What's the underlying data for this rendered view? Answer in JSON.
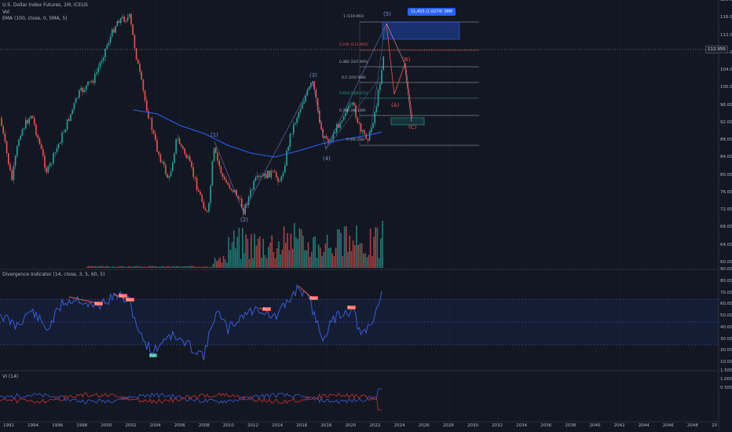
{
  "legend": {
    "title": "U.S. Dollar Index Futures, 1M, ICEUS",
    "volume": "Vol",
    "ema": "EMA (100, close, 0, SMA, 5)",
    "divergence": "Divergence Indicator (14, close, 3, 5, 60, 5)",
    "vi": "VI (14)"
  },
  "colors": {
    "background": "#131722",
    "up": "#26a69a",
    "down": "#ef5350",
    "ema": "#2962ff",
    "indicator": "#3b5bdb",
    "vi_minus": "#d32f2f",
    "grid": "#1e222d"
  },
  "price_axis": [
    "120.000",
    "116.000",
    "112.000",
    "108.000",
    "104.000",
    "100.000",
    "96.000",
    "92.000",
    "88.000",
    "84.000",
    "80.000",
    "76.000",
    "72.000",
    "68.000",
    "64.000",
    "60.000"
  ],
  "current_price": "112.950",
  "osc_axis": [
    "90.00",
    "80.00",
    "70.00",
    "60.00",
    "50.00",
    "40.00",
    "30.00",
    "20.00",
    "10.00"
  ],
  "vi_axis": [
    "1.5000",
    "1.0000",
    "0.5000"
  ],
  "time_axis": [
    "1992",
    "1994",
    "1996",
    "1998",
    "2000",
    "2002",
    "2004",
    "2006",
    "2008",
    "2010",
    "2012",
    "2014",
    "2016",
    "2018",
    "2020",
    "2022",
    "2024",
    "2026",
    "2028",
    "2030",
    "2032",
    "2034",
    "2036",
    "2038",
    "2040",
    "2042",
    "2044",
    "2046",
    "2048",
    "20"
  ],
  "fib_levels": [
    {
      "label": "1 (119.093)",
      "color": "#b2b5be"
    },
    {
      "label": "0.236 (111.905)",
      "color": "#ef5350"
    },
    {
      "label": "0.382 (107.905)",
      "color": "#b2b5be"
    },
    {
      "label": "0.5 (102.958)",
      "color": "#b2b5be"
    },
    {
      "label": "0.618 (100.072)",
      "color": "#26a69a"
    },
    {
      "label": "0.786 (96.109)",
      "color": "#b2b5be"
    },
    {
      "label": "0 (89.256)",
      "color": "#b2b5be"
    }
  ],
  "measure": "11,433 (1.0274) 38M",
  "waves": [
    "(1)",
    "(2)",
    "(3)",
    "(4)",
    "(5)",
    "(A)",
    "(B)",
    "(C)"
  ],
  "divergence_tags": [
    "Bear",
    "Bear",
    "Bear",
    "Bull",
    "Bear",
    "Bear",
    "Bear"
  ]
}
